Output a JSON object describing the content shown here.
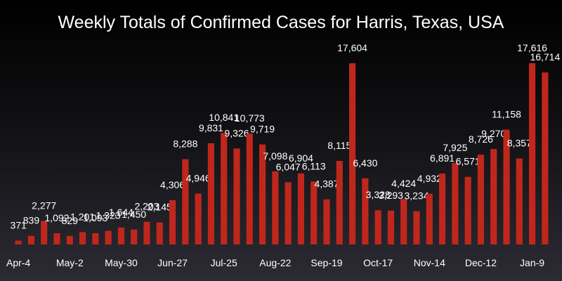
{
  "chart_data": {
    "type": "bar",
    "title": "Weekly Totals of Confirmed Cases for Harris, Texas, USA",
    "xlabel": "",
    "ylabel": "",
    "ylim": [
      0,
      20000
    ],
    "grid": false,
    "colors": {
      "bar": "#c0271c",
      "text": "#ffffff",
      "background_top": "#000000",
      "background_bottom": "#2c2a33"
    },
    "x_tick_labels": [
      "Apr-4",
      "May-2",
      "May-30",
      "Jun-27",
      "Jul-25",
      "Aug-22",
      "Sep-19",
      "Oct-17",
      "Nov-14",
      "Dec-12",
      "Jan-9"
    ],
    "x_tick_indices": [
      0,
      4,
      8,
      12,
      16,
      20,
      24,
      28,
      32,
      36,
      40
    ],
    "values": [
      371,
      839,
      2277,
      1092,
      829,
      1201,
      1093,
      1323,
      1644,
      1450,
      2203,
      2145,
      4306,
      8288,
      4946,
      9831,
      10841,
      9326,
      10773,
      9719,
      7098,
      6047,
      6904,
      6113,
      4387,
      8115,
      17604,
      6430,
      3328,
      3293,
      4424,
      3234,
      4932,
      6891,
      7925,
      6571,
      8726,
      9270,
      11158,
      8357,
      17616,
      16714
    ],
    "data_labels": [
      "371",
      "839",
      "2,277",
      "1,092",
      "829",
      "1,201",
      "1,093",
      "1,323",
      "1,644",
      "1,450",
      "2,203",
      "2,145",
      "4,306",
      "8,288",
      "4,946",
      "9,831",
      "10,841",
      "9,326",
      "10,773",
      "9,719",
      "7,098",
      "6,047",
      "6,904",
      "6,113",
      "4,387",
      "8,115",
      "17,604",
      "6,430",
      "3,328",
      "3,293",
      "4,424",
      "3,234",
      "4,932",
      "6,891",
      "7,925",
      "6,571",
      "8,726",
      "9,270",
      "11,158",
      "8,357",
      "17,616",
      "16,714"
    ]
  }
}
